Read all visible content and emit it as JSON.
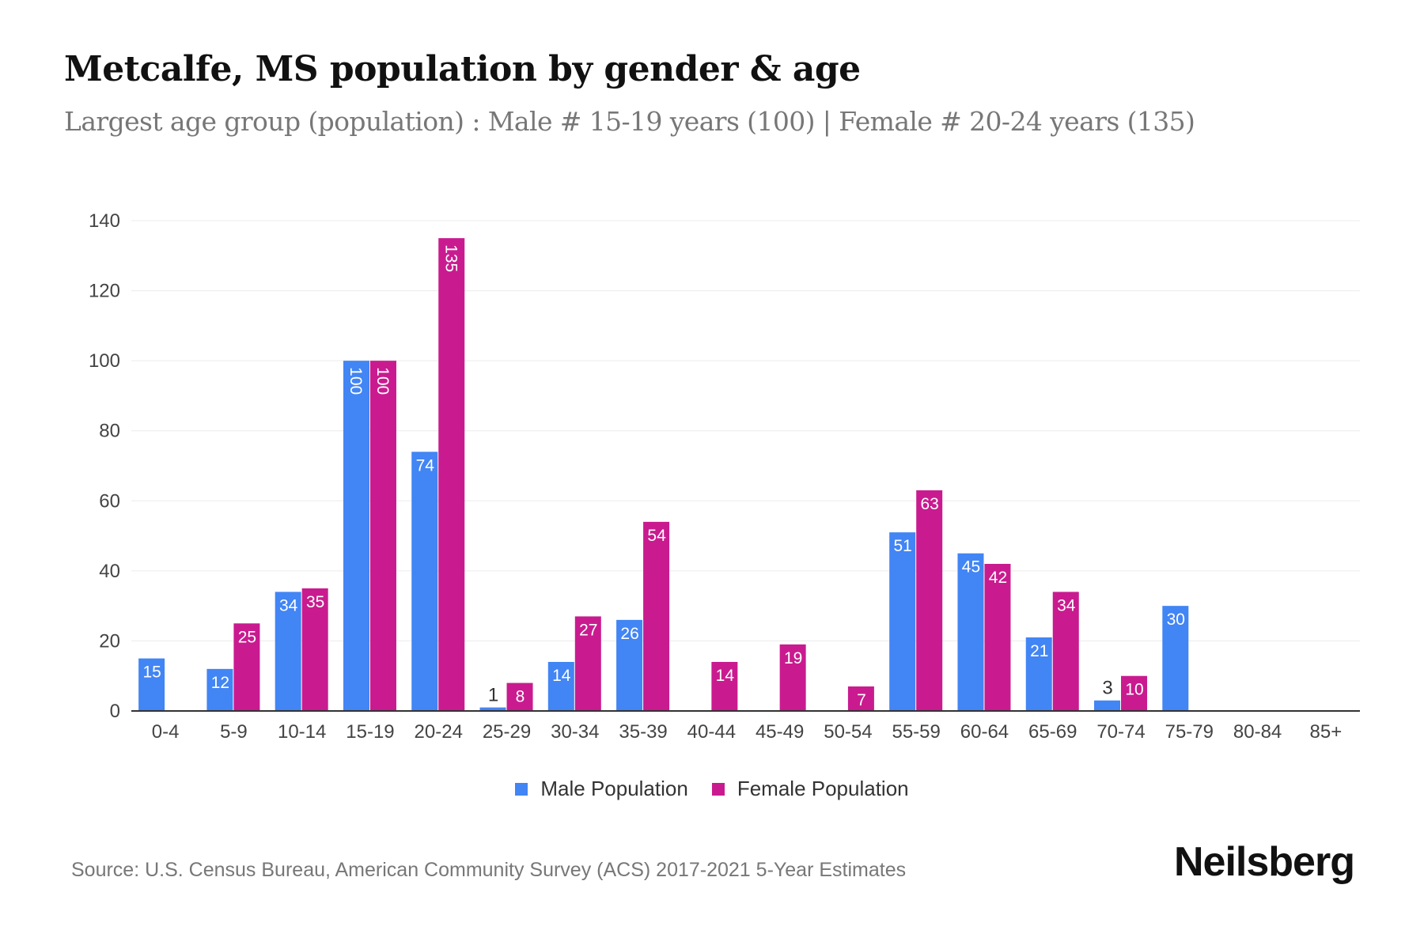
{
  "title": "Metcalfe, MS population by gender & age",
  "subtitle": "Largest age group (population) : Male # 15-19 years (100) | Female # 20-24 years (135)",
  "source": "Source: U.S. Census Bureau, American Community Survey (ACS) 2017-2021 5-Year Estimates",
  "logo": "Neilsberg",
  "chart_data": {
    "type": "bar",
    "categories": [
      "0-4",
      "5-9",
      "10-14",
      "15-19",
      "20-24",
      "25-29",
      "30-34",
      "35-39",
      "40-44",
      "45-49",
      "50-54",
      "55-59",
      "60-64",
      "65-69",
      "70-74",
      "75-79",
      "80-84",
      "85+"
    ],
    "series": [
      {
        "name": "Male Population",
        "color": "#4285f4",
        "values": [
          15,
          12,
          34,
          100,
          74,
          1,
          14,
          26,
          0,
          0,
          0,
          51,
          45,
          21,
          3,
          30,
          0,
          0
        ]
      },
      {
        "name": "Female Population",
        "color": "#c91b8f",
        "values": [
          0,
          25,
          35,
          100,
          135,
          8,
          27,
          54,
          14,
          19,
          7,
          63,
          42,
          34,
          10,
          0,
          0,
          0
        ]
      }
    ],
    "ylim": [
      0,
      140
    ],
    "yticks": [
      0,
      20,
      40,
      60,
      80,
      100,
      120,
      140
    ],
    "grid": true,
    "legend": "bottom",
    "xlabel": "",
    "ylabel": ""
  }
}
